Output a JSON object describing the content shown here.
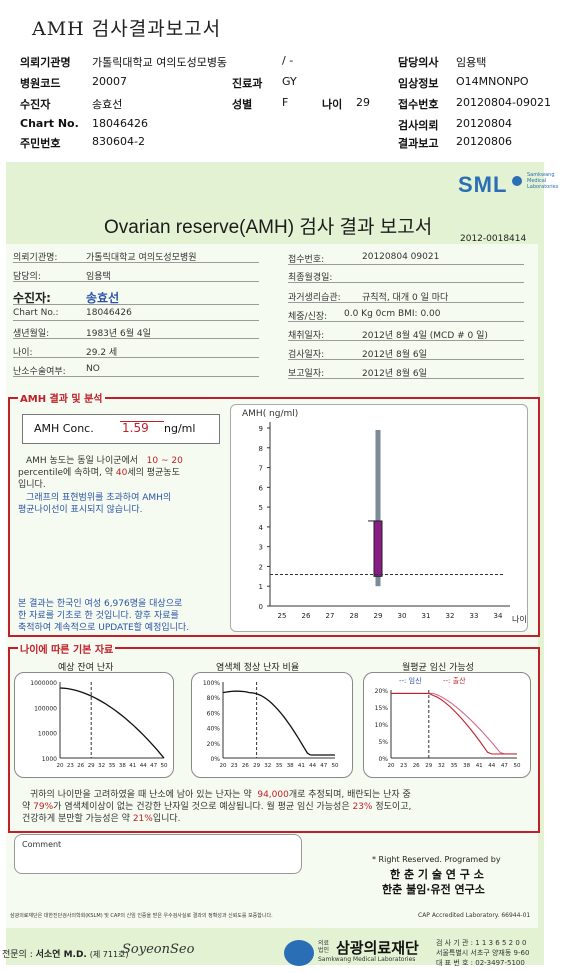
{
  "header": {
    "title": "AMH 검사결과보고서",
    "rows": [
      {
        "l1": "의뢰기관명",
        "v1": "가톨릭대학교 여의도성모병동",
        "v1b": "/ -",
        "l3": "담당의사",
        "v3": "임용택"
      },
      {
        "l1": "병원코드",
        "v1": "20007",
        "l2": "진료과",
        "v2": "GY",
        "l3": "임상정보",
        "v3": "O14MNONPO"
      },
      {
        "l1": "수진자",
        "v1": "송효선",
        "l2": "성별",
        "v2": "F",
        "l2b": "나이",
        "v2b": "29",
        "l3": "접수번호",
        "v3": "20120804-09021"
      },
      {
        "l1": "Chart No.",
        "v1": "18046426",
        "l3": "검사의뢰",
        "v3": "20120804"
      },
      {
        "l1": "주민번호",
        "v1": "830604-2",
        "l3": "결과보고",
        "v3": "20120806"
      }
    ]
  },
  "report": {
    "brand": "SML",
    "brand_sub1": "Samkwang",
    "brand_sub2": "Medical",
    "brand_sub3": "Laboratories",
    "title": "Ovarian reserve(AMH) 검사 결과 보고서",
    "report_no": "2012-0018414",
    "left": [
      {
        "label": "의뢰기관명:",
        "value": "가톨릭대학교 여의도성모병원"
      },
      {
        "label": "담당의:",
        "value": "임용택"
      },
      {
        "label": "수진자:",
        "value": "송효선"
      },
      {
        "label": "Chart No.:",
        "value": "18046426"
      },
      {
        "label": "생년월일:",
        "value": "1983년 6월 4일"
      },
      {
        "label": "나이:",
        "value": "29.2 세"
      },
      {
        "label": "난소수술여부:",
        "value": "NO"
      }
    ],
    "right": [
      {
        "label": "접수번호:",
        "value": "20120804 09021"
      },
      {
        "label": "최종월경일:",
        "value": ""
      },
      {
        "label": "과거생리습관:",
        "value": "규칙적, 대개   0 일 마다"
      },
      {
        "label": "체중/신장:",
        "value": "0.0 Kg      0cm    BMI:   0.00"
      },
      {
        "label": "채취일자:",
        "value": "2012년 8월 4일     (MCD #  0 일)"
      },
      {
        "label": "검사일자:",
        "value": "2012년 8월 6일"
      },
      {
        "label": "보고일자:",
        "value": "2012년 8월 6일"
      }
    ]
  },
  "amh": {
    "section_title": "AMH 결과 및 분석",
    "conc_label": "AMH Conc.",
    "conc_value": "1.59",
    "conc_unit": "ng/ml",
    "desc1_a": "AMH 농도는 동일 나이군에서",
    "desc1_range": "10 ~ 20",
    "desc2": "percentile에 속하며, 약",
    "desc2_age": "40",
    "desc2_b": "세의 평균농도",
    "desc3": "입니다.",
    "note1": "그래프의 표현범위를 초과하여 AMH의",
    "note2": "평균나이선이 표시되지 않습니다.",
    "foot1": "본 결과는 한국인 여성 6,976명을 대상으로",
    "foot2": "한 자료를 기초로 한 것입니다. 향후 자료를",
    "foot3": "축적하여 계속적으로 UPDATE할 예정입니다."
  },
  "chart_data": [
    {
      "type": "box",
      "title": "",
      "ylabel": "AMH( ng/ml)",
      "xlabel": "나이",
      "x_ticks": [
        25,
        26,
        27,
        28,
        29,
        30,
        31,
        32,
        33,
        34
      ],
      "y_ticks": [
        0,
        1,
        2,
        3,
        4,
        5,
        6,
        7,
        8,
        9
      ],
      "ylim": [
        0,
        9
      ],
      "age": 29,
      "whisker_low": 1.0,
      "whisker_high": 8.9,
      "box_low": 1.5,
      "box_high": 4.3,
      "patient_value": 1.59
    },
    {
      "type": "line",
      "title": "예상 잔여 난자",
      "x_ticks": [
        20,
        23,
        26,
        29,
        32,
        35,
        38,
        41,
        44,
        47,
        50
      ],
      "y_ticks": [
        "1000000",
        "100000",
        "10000",
        "1000"
      ],
      "y_scale": "log"
    },
    {
      "type": "line",
      "title": "염색체 정상 난자 비율",
      "x_ticks": [
        20,
        23,
        26,
        29,
        32,
        35,
        38,
        41,
        44,
        47,
        50
      ],
      "y_ticks": [
        "100%",
        "80%",
        "60%",
        "40%",
        "20%",
        "0%"
      ]
    },
    {
      "type": "line",
      "title": "월평균 임신 가능성",
      "legend": [
        "임신",
        "출산"
      ],
      "x_ticks": [
        20,
        23,
        26,
        29,
        32,
        35,
        38,
        41,
        44,
        47,
        50
      ],
      "y_ticks": [
        "20%",
        "15%",
        "10%",
        "5%",
        "0%"
      ]
    }
  ],
  "age_info": {
    "section_title": "나이에 따른 기본 자료",
    "summary1_a": "귀하의 나이만을 고려하였을 때 난소에 남아 있는 난자는 약",
    "summary1_num": "94,000",
    "summary1_b": "개로 추정되며, 배란되는 난자 중",
    "summary2_a": "약",
    "summary2_pct": "79%",
    "summary2_b": "가 염색체이상이 없는 건강한 난자일 것으로 예상됩니다. 월 평균 임신 가능성은",
    "summary2_pct2": "23%",
    "summary2_c": "정도이고,",
    "summary3_a": "건강하게 분만할 가능성은 약",
    "summary3_pct": "21%",
    "summary3_b": "입니다."
  },
  "footer": {
    "comment_label": "Comment",
    "rights": "* Right Reserved. Programed by",
    "inst1": "한 춘  기 술  연 구 소",
    "inst2": "한춘 불임·유전 연구소",
    "cert": "삼광의료재단은 대한진단검사의학회(KSLM) 및 CAP의 신임 인증을 받은 우수검사실로 결과의 정확성과 신뢰도를 보증합니다.",
    "cap": "CAP  Accredited  Laboratory.  66944-01",
    "doctor_label": "전문의 :",
    "doctor": "서소연 M.D.",
    "doctor_no": "(제 711호)",
    "signature": "SoyeonSeo",
    "foundation": "삼광의료재단",
    "foundation_sub": "Samkwang Medical Laboratories",
    "foundation_prefix": "의료 법인",
    "contact1": "검 사 기 관 : 1 1 3 6 5 2 0 0",
    "contact2": "서울특별시 서초구 양재동 9-60",
    "contact3": "대 표 번 호 : 02-3497-5100"
  }
}
